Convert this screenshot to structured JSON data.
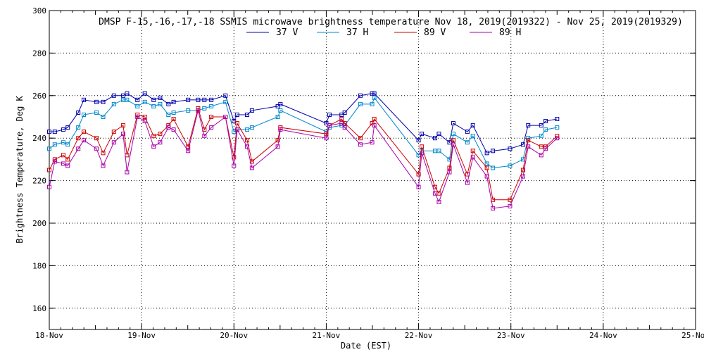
{
  "chart_data": {
    "type": "line",
    "title": "DMSP F-15,-16,-17,-18 SSMIS microwave brightness temperature Nov 18, 2019(2019322) - Nov 25, 2019(2019329)",
    "xlabel": "Date (EST)",
    "ylabel": "Brightness Temperature, Deg K",
    "xlim": [
      "2019-11-18 00:00",
      "2019-11-25 00:00"
    ],
    "ylim": [
      150,
      300
    ],
    "y_ticks": [
      160,
      180,
      200,
      220,
      240,
      260,
      280,
      300
    ],
    "x_tick_labels": [
      "18-Nov",
      "19-Nov",
      "20-Nov",
      "21-Nov",
      "22-Nov",
      "23-Nov",
      "24-Nov",
      "25-Nov"
    ],
    "grid": true,
    "legend_position": "top-center",
    "series": [
      {
        "name": "37 V",
        "color": "#0000aa",
        "points": [
          [
            "2019-11-18 00:00",
            243
          ],
          [
            "2019-11-18 01:26",
            243
          ],
          [
            "2019-11-18 03:39",
            244
          ],
          [
            "2019-11-18 04:48",
            245
          ],
          [
            "2019-11-18 07:32",
            252
          ],
          [
            "2019-11-18 08:58",
            258
          ],
          [
            "2019-11-18 12:17",
            257
          ],
          [
            "2019-11-18 14:00",
            257
          ],
          [
            "2019-11-18 16:48",
            260
          ],
          [
            "2019-11-18 19:12",
            260
          ],
          [
            "2019-11-18 20:12",
            261
          ],
          [
            "2019-11-18 22:55",
            258
          ],
          [
            "2019-11-19 00:50",
            261
          ],
          [
            "2019-11-19 03:08",
            258
          ],
          [
            "2019-11-19 04:48",
            259
          ],
          [
            "2019-11-19 06:59",
            256
          ],
          [
            "2019-11-19 08:19",
            257
          ],
          [
            "2019-11-19 12:05",
            258
          ],
          [
            "2019-11-19 14:41",
            258
          ],
          [
            "2019-11-19 16:19",
            258
          ],
          [
            "2019-11-19 18:07",
            258
          ],
          [
            "2019-11-19 21:48",
            260
          ],
          [
            "2019-11-20 00:00",
            248
          ],
          [
            "2019-11-20 00:50",
            251
          ],
          [
            "2019-11-20 03:26",
            251
          ],
          [
            "2019-11-20 04:41",
            253
          ],
          [
            "2019-11-20 11:24",
            255
          ],
          [
            "2019-11-20 12:05",
            256
          ],
          [
            "2019-11-21 00:00",
            247
          ],
          [
            "2019-11-21 00:50",
            251
          ],
          [
            "2019-11-21 04:00",
            251
          ],
          [
            "2019-11-21 04:48",
            252
          ],
          [
            "2019-11-21 08:53",
            260
          ],
          [
            "2019-11-21 11:55",
            261
          ],
          [
            "2019-11-21 12:29",
            261
          ],
          [
            "2019-11-22 00:00",
            239
          ],
          [
            "2019-11-22 00:50",
            242
          ],
          [
            "2019-11-22 04:17",
            240
          ],
          [
            "2019-11-22 05:17",
            242
          ],
          [
            "2019-11-22 08:02",
            238
          ],
          [
            "2019-11-22 09:02",
            247
          ],
          [
            "2019-11-22 12:41",
            243
          ],
          [
            "2019-11-22 14:07",
            246
          ],
          [
            "2019-11-22 17:46",
            233
          ],
          [
            "2019-11-22 19:19",
            234
          ],
          [
            "2019-11-22 23:46",
            235
          ],
          [
            "2019-11-23 03:10",
            237
          ],
          [
            "2019-11-23 04:29",
            246
          ],
          [
            "2019-11-23 07:53",
            246
          ],
          [
            "2019-11-23 09:02",
            248
          ],
          [
            "2019-11-23 12:00",
            249
          ]
        ]
      },
      {
        "name": "37 H",
        "color": "#0088cc",
        "points": [
          [
            "2019-11-18 00:00",
            235
          ],
          [
            "2019-11-18 01:26",
            237
          ],
          [
            "2019-11-18 03:39",
            238
          ],
          [
            "2019-11-18 04:48",
            237
          ],
          [
            "2019-11-18 07:32",
            245
          ],
          [
            "2019-11-18 08:58",
            251
          ],
          [
            "2019-11-18 12:17",
            252
          ],
          [
            "2019-11-18 14:00",
            250
          ],
          [
            "2019-11-18 16:48",
            256
          ],
          [
            "2019-11-18 19:12",
            258
          ],
          [
            "2019-11-18 20:12",
            258
          ],
          [
            "2019-11-18 22:55",
            255
          ],
          [
            "2019-11-19 00:50",
            257
          ],
          [
            "2019-11-19 03:08",
            255
          ],
          [
            "2019-11-19 04:48",
            256
          ],
          [
            "2019-11-19 06:59",
            251
          ],
          [
            "2019-11-19 08:19",
            252
          ],
          [
            "2019-11-19 12:05",
            253
          ],
          [
            "2019-11-19 14:41",
            253
          ],
          [
            "2019-11-19 16:19",
            254
          ],
          [
            "2019-11-19 18:07",
            255
          ],
          [
            "2019-11-19 21:48",
            257
          ],
          [
            "2019-11-20 00:00",
            243
          ],
          [
            "2019-11-20 00:50",
            244
          ],
          [
            "2019-11-20 03:26",
            244
          ],
          [
            "2019-11-20 04:41",
            245
          ],
          [
            "2019-11-20 11:24",
            250
          ],
          [
            "2019-11-20 12:05",
            253
          ],
          [
            "2019-11-21 00:00",
            243
          ],
          [
            "2019-11-21 00:50",
            245
          ],
          [
            "2019-11-21 04:00",
            246
          ],
          [
            "2019-11-21 04:48",
            246
          ],
          [
            "2019-11-21 08:53",
            256
          ],
          [
            "2019-11-21 11:55",
            256
          ],
          [
            "2019-11-21 12:29",
            259
          ],
          [
            "2019-11-22 00:00",
            232
          ],
          [
            "2019-11-22 00:50",
            234
          ],
          [
            "2019-11-22 04:17",
            234
          ],
          [
            "2019-11-22 05:17",
            234
          ],
          [
            "2019-11-22 08:02",
            230
          ],
          [
            "2019-11-22 09:02",
            242
          ],
          [
            "2019-11-22 12:41",
            238
          ],
          [
            "2019-11-22 14:07",
            241
          ],
          [
            "2019-11-22 17:46",
            228
          ],
          [
            "2019-11-22 19:19",
            226
          ],
          [
            "2019-11-22 23:46",
            227
          ],
          [
            "2019-11-23 03:10",
            230
          ],
          [
            "2019-11-23 04:29",
            240
          ],
          [
            "2019-11-23 07:53",
            241
          ],
          [
            "2019-11-23 09:02",
            244
          ],
          [
            "2019-11-23 12:00",
            245
          ]
        ]
      },
      {
        "name": "89 V",
        "color": "#cc0000",
        "points": [
          [
            "2019-11-18 00:00",
            225
          ],
          [
            "2019-11-18 01:26",
            230
          ],
          [
            "2019-11-18 03:39",
            232
          ],
          [
            "2019-11-18 04:48",
            230
          ],
          [
            "2019-11-18 07:32",
            240
          ],
          [
            "2019-11-18 08:58",
            243
          ],
          [
            "2019-11-18 12:17",
            240
          ],
          [
            "2019-11-18 14:00",
            233
          ],
          [
            "2019-11-18 16:48",
            243
          ],
          [
            "2019-11-18 19:12",
            246
          ],
          [
            "2019-11-18 20:12",
            232
          ],
          [
            "2019-11-18 22:55",
            251
          ],
          [
            "2019-11-19 00:50",
            250
          ],
          [
            "2019-11-19 03:08",
            241
          ],
          [
            "2019-11-19 04:48",
            242
          ],
          [
            "2019-11-19 06:59",
            246
          ],
          [
            "2019-11-19 08:19",
            249
          ],
          [
            "2019-11-19 12:05",
            236
          ],
          [
            "2019-11-19 14:41",
            254
          ],
          [
            "2019-11-19 16:19",
            244
          ],
          [
            "2019-11-19 18:07",
            250
          ],
          [
            "2019-11-19 21:48",
            250
          ],
          [
            "2019-11-20 00:00",
            231
          ],
          [
            "2019-11-20 00:50",
            247
          ],
          [
            "2019-11-20 03:26",
            239
          ],
          [
            "2019-11-20 04:41",
            229
          ],
          [
            "2019-11-20 11:24",
            239
          ],
          [
            "2019-11-20 12:05",
            245
          ],
          [
            "2019-11-21 00:00",
            242
          ],
          [
            "2019-11-21 00:50",
            246
          ],
          [
            "2019-11-21 04:00",
            249
          ],
          [
            "2019-11-21 04:48",
            247
          ],
          [
            "2019-11-21 08:53",
            240
          ],
          [
            "2019-11-21 11:55",
            247
          ],
          [
            "2019-11-21 12:29",
            249
          ],
          [
            "2019-11-22 00:00",
            223
          ],
          [
            "2019-11-22 00:50",
            236
          ],
          [
            "2019-11-22 04:17",
            217
          ],
          [
            "2019-11-22 05:17",
            214
          ],
          [
            "2019-11-22 08:02",
            226
          ],
          [
            "2019-11-22 09:02",
            239
          ],
          [
            "2019-11-22 12:41",
            223
          ],
          [
            "2019-11-22 14:07",
            234
          ],
          [
            "2019-11-22 17:46",
            226
          ],
          [
            "2019-11-22 19:19",
            211
          ],
          [
            "2019-11-22 23:46",
            211
          ],
          [
            "2019-11-23 03:10",
            225
          ],
          [
            "2019-11-23 04:29",
            239
          ],
          [
            "2019-11-23 07:53",
            236
          ],
          [
            "2019-11-23 09:02",
            236
          ],
          [
            "2019-11-23 12:00",
            241
          ]
        ]
      },
      {
        "name": "89 H",
        "color": "#aa00aa",
        "points": [
          [
            "2019-11-18 00:00",
            217
          ],
          [
            "2019-11-18 01:26",
            229
          ],
          [
            "2019-11-18 03:39",
            228
          ],
          [
            "2019-11-18 04:48",
            227
          ],
          [
            "2019-11-18 07:32",
            235
          ],
          [
            "2019-11-18 08:58",
            239
          ],
          [
            "2019-11-18 12:17",
            235
          ],
          [
            "2019-11-18 14:00",
            227
          ],
          [
            "2019-11-18 16:48",
            238
          ],
          [
            "2019-11-18 19:12",
            242
          ],
          [
            "2019-11-18 20:12",
            224
          ],
          [
            "2019-11-18 22:55",
            250
          ],
          [
            "2019-11-19 00:50",
            248
          ],
          [
            "2019-11-19 03:08",
            236
          ],
          [
            "2019-11-19 04:48",
            238
          ],
          [
            "2019-11-19 06:59",
            245
          ],
          [
            "2019-11-19 08:19",
            244
          ],
          [
            "2019-11-19 12:05",
            234
          ],
          [
            "2019-11-19 14:41",
            253
          ],
          [
            "2019-11-19 16:19",
            241
          ],
          [
            "2019-11-19 18:07",
            245
          ],
          [
            "2019-11-19 21:48",
            250
          ],
          [
            "2019-11-20 00:00",
            227
          ],
          [
            "2019-11-20 00:50",
            244
          ],
          [
            "2019-11-20 03:26",
            236
          ],
          [
            "2019-11-20 04:41",
            226
          ],
          [
            "2019-11-20 11:24",
            236
          ],
          [
            "2019-11-20 12:05",
            244
          ],
          [
            "2019-11-21 00:00",
            240
          ],
          [
            "2019-11-21 00:50",
            246
          ],
          [
            "2019-11-21 04:00",
            247
          ],
          [
            "2019-11-21 04:48",
            245
          ],
          [
            "2019-11-21 08:53",
            237
          ],
          [
            "2019-11-21 11:55",
            238
          ],
          [
            "2019-11-21 12:29",
            246
          ],
          [
            "2019-11-22 00:00",
            217
          ],
          [
            "2019-11-22 00:50",
            233
          ],
          [
            "2019-11-22 04:17",
            214
          ],
          [
            "2019-11-22 05:17",
            210
          ],
          [
            "2019-11-22 08:02",
            224
          ],
          [
            "2019-11-22 09:02",
            237
          ],
          [
            "2019-11-22 12:41",
            219
          ],
          [
            "2019-11-22 14:07",
            231
          ],
          [
            "2019-11-22 17:46",
            222
          ],
          [
            "2019-11-22 19:19",
            207
          ],
          [
            "2019-11-22 23:46",
            208
          ],
          [
            "2019-11-23 03:10",
            222
          ],
          [
            "2019-11-23 04:29",
            236
          ],
          [
            "2019-11-23 07:53",
            232
          ],
          [
            "2019-11-23 09:02",
            235
          ],
          [
            "2019-11-23 12:00",
            240
          ]
        ]
      }
    ]
  }
}
